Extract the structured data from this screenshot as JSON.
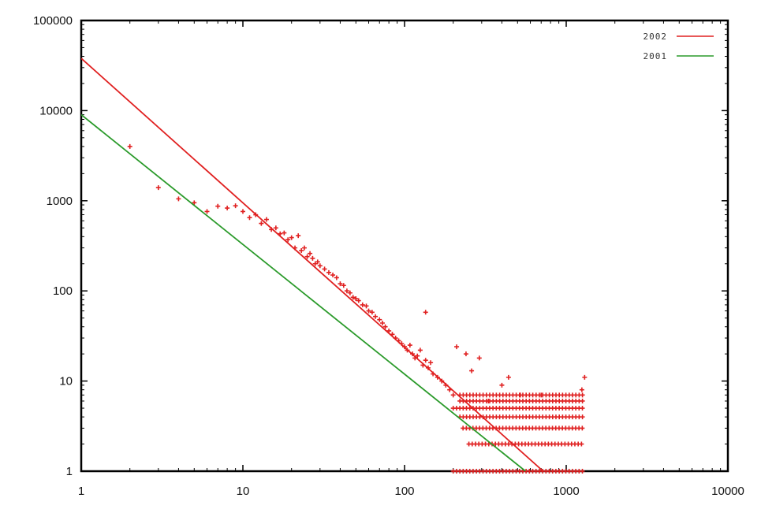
{
  "chart_data": {
    "type": "scatter",
    "title": "",
    "xlabel": "",
    "ylabel": "",
    "xscale": "log",
    "yscale": "log",
    "xlim": [
      1,
      10000
    ],
    "ylim": [
      1,
      100000
    ],
    "grid": false,
    "legend_position": "top-right",
    "x_tick_labels": [
      "1",
      "10",
      "100",
      "1000",
      "10000"
    ],
    "x_tick_values": [
      1,
      10,
      100,
      1000,
      10000
    ],
    "y_tick_labels": [
      "1",
      "10",
      "100",
      "1000",
      "10000",
      "100000"
    ],
    "y_tick_values": [
      1,
      10,
      100,
      1000,
      10000,
      100000
    ],
    "lines": [
      {
        "name": "2002",
        "color": "#e02020",
        "points": [
          [
            1,
            38000
          ],
          [
            720,
            1
          ]
        ]
      },
      {
        "name": "2001",
        "color": "#2a9a2a",
        "points": [
          [
            1,
            9000
          ],
          [
            560,
            1
          ]
        ]
      }
    ],
    "scatter_color": "#e02020",
    "scatter_points": [
      [
        2,
        4000
      ],
      [
        3,
        1400
      ],
      [
        4,
        1050
      ],
      [
        5,
        950
      ],
      [
        6,
        760
      ],
      [
        7,
        870
      ],
      [
        8,
        830
      ],
      [
        9,
        880
      ],
      [
        10,
        760
      ],
      [
        11,
        650
      ],
      [
        12,
        700
      ],
      [
        13,
        560
      ],
      [
        14,
        620
      ],
      [
        15,
        480
      ],
      [
        16,
        500
      ],
      [
        17,
        430
      ],
      [
        18,
        440
      ],
      [
        19,
        370
      ],
      [
        20,
        390
      ],
      [
        21,
        300
      ],
      [
        22,
        410
      ],
      [
        23,
        280
      ],
      [
        24,
        300
      ],
      [
        25,
        240
      ],
      [
        26,
        260
      ],
      [
        27,
        230
      ],
      [
        28,
        200
      ],
      [
        29,
        210
      ],
      [
        30,
        190
      ],
      [
        32,
        175
      ],
      [
        34,
        160
      ],
      [
        36,
        150
      ],
      [
        38,
        140
      ],
      [
        40,
        120
      ],
      [
        42,
        115
      ],
      [
        44,
        100
      ],
      [
        46,
        95
      ],
      [
        48,
        85
      ],
      [
        50,
        82
      ],
      [
        52,
        78
      ],
      [
        55,
        70
      ],
      [
        58,
        68
      ],
      [
        60,
        60
      ],
      [
        63,
        58
      ],
      [
        66,
        52
      ],
      [
        70,
        48
      ],
      [
        73,
        44
      ],
      [
        76,
        40
      ],
      [
        80,
        36
      ],
      [
        84,
        33
      ],
      [
        88,
        30
      ],
      [
        92,
        28
      ],
      [
        96,
        26
      ],
      [
        100,
        24
      ],
      [
        104,
        22
      ],
      [
        108,
        25
      ],
      [
        112,
        20
      ],
      [
        116,
        18
      ],
      [
        120,
        19
      ],
      [
        125,
        22
      ],
      [
        130,
        15
      ],
      [
        135,
        17
      ],
      [
        140,
        14
      ],
      [
        145,
        16
      ],
      [
        150,
        12
      ],
      [
        160,
        11
      ],
      [
        170,
        10
      ],
      [
        180,
        9
      ],
      [
        190,
        8
      ],
      [
        200,
        7
      ],
      [
        135,
        58
      ],
      [
        210,
        24
      ],
      [
        240,
        20
      ],
      [
        260,
        13
      ],
      [
        290,
        18
      ],
      [
        330,
        6
      ],
      [
        400,
        9
      ],
      [
        440,
        11
      ],
      [
        520,
        7
      ],
      [
        700,
        7
      ],
      [
        1300,
        11
      ],
      [
        1250,
        8
      ]
    ],
    "discrete_bands": [
      {
        "y": 7,
        "x_range": [
          220,
          1300
        ]
      },
      {
        "y": 6,
        "x_range": [
          220,
          1300
        ]
      },
      {
        "y": 5,
        "x_range": [
          200,
          1300
        ]
      },
      {
        "y": 4,
        "x_range": [
          220,
          1300
        ]
      },
      {
        "y": 3,
        "x_range": [
          230,
          1300
        ]
      },
      {
        "y": 2,
        "x_range": [
          250,
          1300
        ]
      },
      {
        "y": 1,
        "x_range": [
          200,
          1300
        ]
      }
    ]
  }
}
